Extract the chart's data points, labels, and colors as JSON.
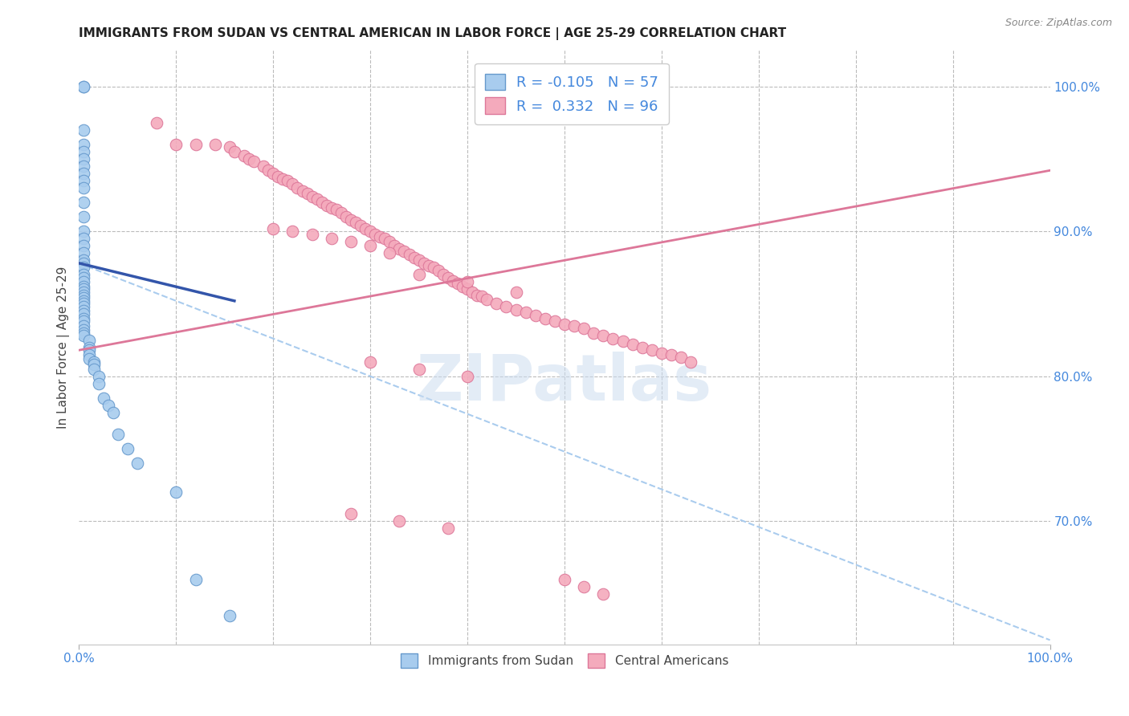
{
  "title": "IMMIGRANTS FROM SUDAN VS CENTRAL AMERICAN IN LABOR FORCE | AGE 25-29 CORRELATION CHART",
  "source": "Source: ZipAtlas.com",
  "ylabel": "In Labor Force | Age 25-29",
  "xlim": [
    0.0,
    1.0
  ],
  "ylim": [
    0.615,
    1.025
  ],
  "right_yticks": [
    0.7,
    0.8,
    0.9,
    1.0
  ],
  "right_yticklabels": [
    "70.0%",
    "80.0%",
    "90.0%",
    "100.0%"
  ],
  "watermark": "ZIPatlas",
  "legend_sudan_r": "-0.105",
  "legend_sudan_n": "57",
  "legend_central_r": "0.332",
  "legend_central_n": "96",
  "sudan_color": "#A8CCEE",
  "sudan_edge_color": "#6699CC",
  "central_color": "#F4AABC",
  "central_edge_color": "#DD7799",
  "sudan_line_color": "#3355AA",
  "central_line_color": "#DD7799",
  "dashed_line_color": "#AACCEE",
  "grid_color": "#BBBBBB",
  "title_color": "#222222",
  "right_axis_color": "#4488DD",
  "bottom_tick_color": "#4488DD",
  "sudan_points_x": [
    0.005,
    0.005,
    0.005,
    0.005,
    0.005,
    0.005,
    0.005,
    0.005,
    0.005,
    0.005,
    0.005,
    0.005,
    0.005,
    0.005,
    0.005,
    0.005,
    0.005,
    0.005,
    0.005,
    0.005,
    0.005,
    0.005,
    0.005,
    0.005,
    0.005,
    0.005,
    0.005,
    0.005,
    0.005,
    0.005,
    0.005,
    0.005,
    0.005,
    0.005,
    0.005,
    0.005,
    0.005,
    0.005,
    0.01,
    0.01,
    0.01,
    0.01,
    0.01,
    0.015,
    0.015,
    0.015,
    0.02,
    0.02,
    0.025,
    0.03,
    0.035,
    0.04,
    0.05,
    0.06,
    0.1,
    0.12,
    0.155
  ],
  "sudan_points_y": [
    1.0,
    1.0,
    0.97,
    0.96,
    0.955,
    0.95,
    0.945,
    0.94,
    0.935,
    0.93,
    0.92,
    0.91,
    0.9,
    0.895,
    0.89,
    0.885,
    0.88,
    0.878,
    0.875,
    0.87,
    0.868,
    0.865,
    0.862,
    0.86,
    0.858,
    0.856,
    0.854,
    0.852,
    0.85,
    0.848,
    0.845,
    0.843,
    0.84,
    0.838,
    0.835,
    0.832,
    0.83,
    0.828,
    0.825,
    0.82,
    0.818,
    0.815,
    0.812,
    0.81,
    0.808,
    0.805,
    0.8,
    0.795,
    0.785,
    0.78,
    0.775,
    0.76,
    0.75,
    0.74,
    0.72,
    0.66,
    0.635
  ],
  "central_points_x": [
    0.08,
    0.1,
    0.12,
    0.14,
    0.155,
    0.16,
    0.17,
    0.175,
    0.18,
    0.19,
    0.195,
    0.2,
    0.205,
    0.21,
    0.215,
    0.22,
    0.225,
    0.23,
    0.235,
    0.24,
    0.245,
    0.25,
    0.255,
    0.26,
    0.265,
    0.27,
    0.275,
    0.28,
    0.285,
    0.29,
    0.295,
    0.3,
    0.305,
    0.31,
    0.315,
    0.32,
    0.325,
    0.33,
    0.335,
    0.34,
    0.345,
    0.35,
    0.355,
    0.36,
    0.365,
    0.37,
    0.375,
    0.38,
    0.385,
    0.39,
    0.395,
    0.4,
    0.405,
    0.41,
    0.415,
    0.42,
    0.43,
    0.44,
    0.45,
    0.46,
    0.47,
    0.48,
    0.49,
    0.5,
    0.51,
    0.52,
    0.53,
    0.54,
    0.55,
    0.56,
    0.57,
    0.58,
    0.59,
    0.6,
    0.61,
    0.62,
    0.63,
    0.35,
    0.4,
    0.45,
    0.3,
    0.32,
    0.28,
    0.26,
    0.24,
    0.22,
    0.2,
    0.4,
    0.35,
    0.3,
    0.38,
    0.33,
    0.28,
    0.5,
    0.52,
    0.54
  ],
  "central_points_y": [
    0.975,
    0.96,
    0.96,
    0.96,
    0.958,
    0.955,
    0.952,
    0.95,
    0.948,
    0.945,
    0.942,
    0.94,
    0.938,
    0.936,
    0.935,
    0.933,
    0.93,
    0.928,
    0.926,
    0.924,
    0.922,
    0.92,
    0.918,
    0.916,
    0.915,
    0.913,
    0.91,
    0.908,
    0.906,
    0.904,
    0.902,
    0.9,
    0.898,
    0.896,
    0.895,
    0.893,
    0.89,
    0.888,
    0.886,
    0.884,
    0.882,
    0.88,
    0.878,
    0.876,
    0.875,
    0.873,
    0.87,
    0.868,
    0.866,
    0.864,
    0.862,
    0.86,
    0.858,
    0.856,
    0.855,
    0.853,
    0.85,
    0.848,
    0.846,
    0.844,
    0.842,
    0.84,
    0.838,
    0.836,
    0.835,
    0.833,
    0.83,
    0.828,
    0.826,
    0.824,
    0.822,
    0.82,
    0.818,
    0.816,
    0.815,
    0.813,
    0.81,
    0.87,
    0.865,
    0.858,
    0.89,
    0.885,
    0.893,
    0.895,
    0.898,
    0.9,
    0.902,
    0.8,
    0.805,
    0.81,
    0.695,
    0.7,
    0.705,
    0.66,
    0.655,
    0.65
  ],
  "sudan_line_x": [
    0.0,
    0.16
  ],
  "sudan_line_y": [
    0.878,
    0.852
  ],
  "central_line_x": [
    0.0,
    1.0
  ],
  "central_line_y": [
    0.818,
    0.942
  ],
  "dashed_line_x": [
    0.0,
    1.0
  ],
  "dashed_line_y": [
    0.878,
    0.618
  ]
}
